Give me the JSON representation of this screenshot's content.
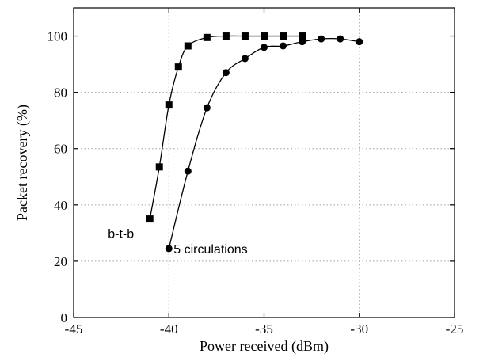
{
  "chart_data": {
    "type": "line",
    "title": "",
    "xlabel": "Power received (dBm)",
    "ylabel": "Packet recovery (%)",
    "xlim": [
      -45,
      -25
    ],
    "ylim": [
      0,
      110
    ],
    "xticks": [
      -45,
      -40,
      -35,
      -30,
      -25
    ],
    "yticks": [
      0,
      20,
      40,
      60,
      80,
      100
    ],
    "grid": true,
    "series": [
      {
        "marker": "square",
        "x": [
          -41,
          -40.5,
          -40,
          -39.5,
          -39,
          -38,
          -37,
          -36,
          -35,
          -34,
          -33
        ],
        "y": [
          35,
          53.5,
          75.5,
          89,
          96.5,
          99.5,
          100,
          100,
          100,
          100,
          100
        ],
        "annotation": "b-t-b"
      },
      {
        "marker": "circle",
        "x": [
          -40,
          -39,
          -38,
          -37,
          -36,
          -35,
          -34,
          -33,
          -32,
          -31,
          -30
        ],
        "y": [
          24.5,
          52,
          74.5,
          87,
          92,
          96,
          96.5,
          98,
          99,
          99,
          98
        ],
        "annotation": "5 circulations"
      }
    ],
    "colors": {
      "line": "#000000",
      "grid": "#a0a0a0"
    }
  }
}
